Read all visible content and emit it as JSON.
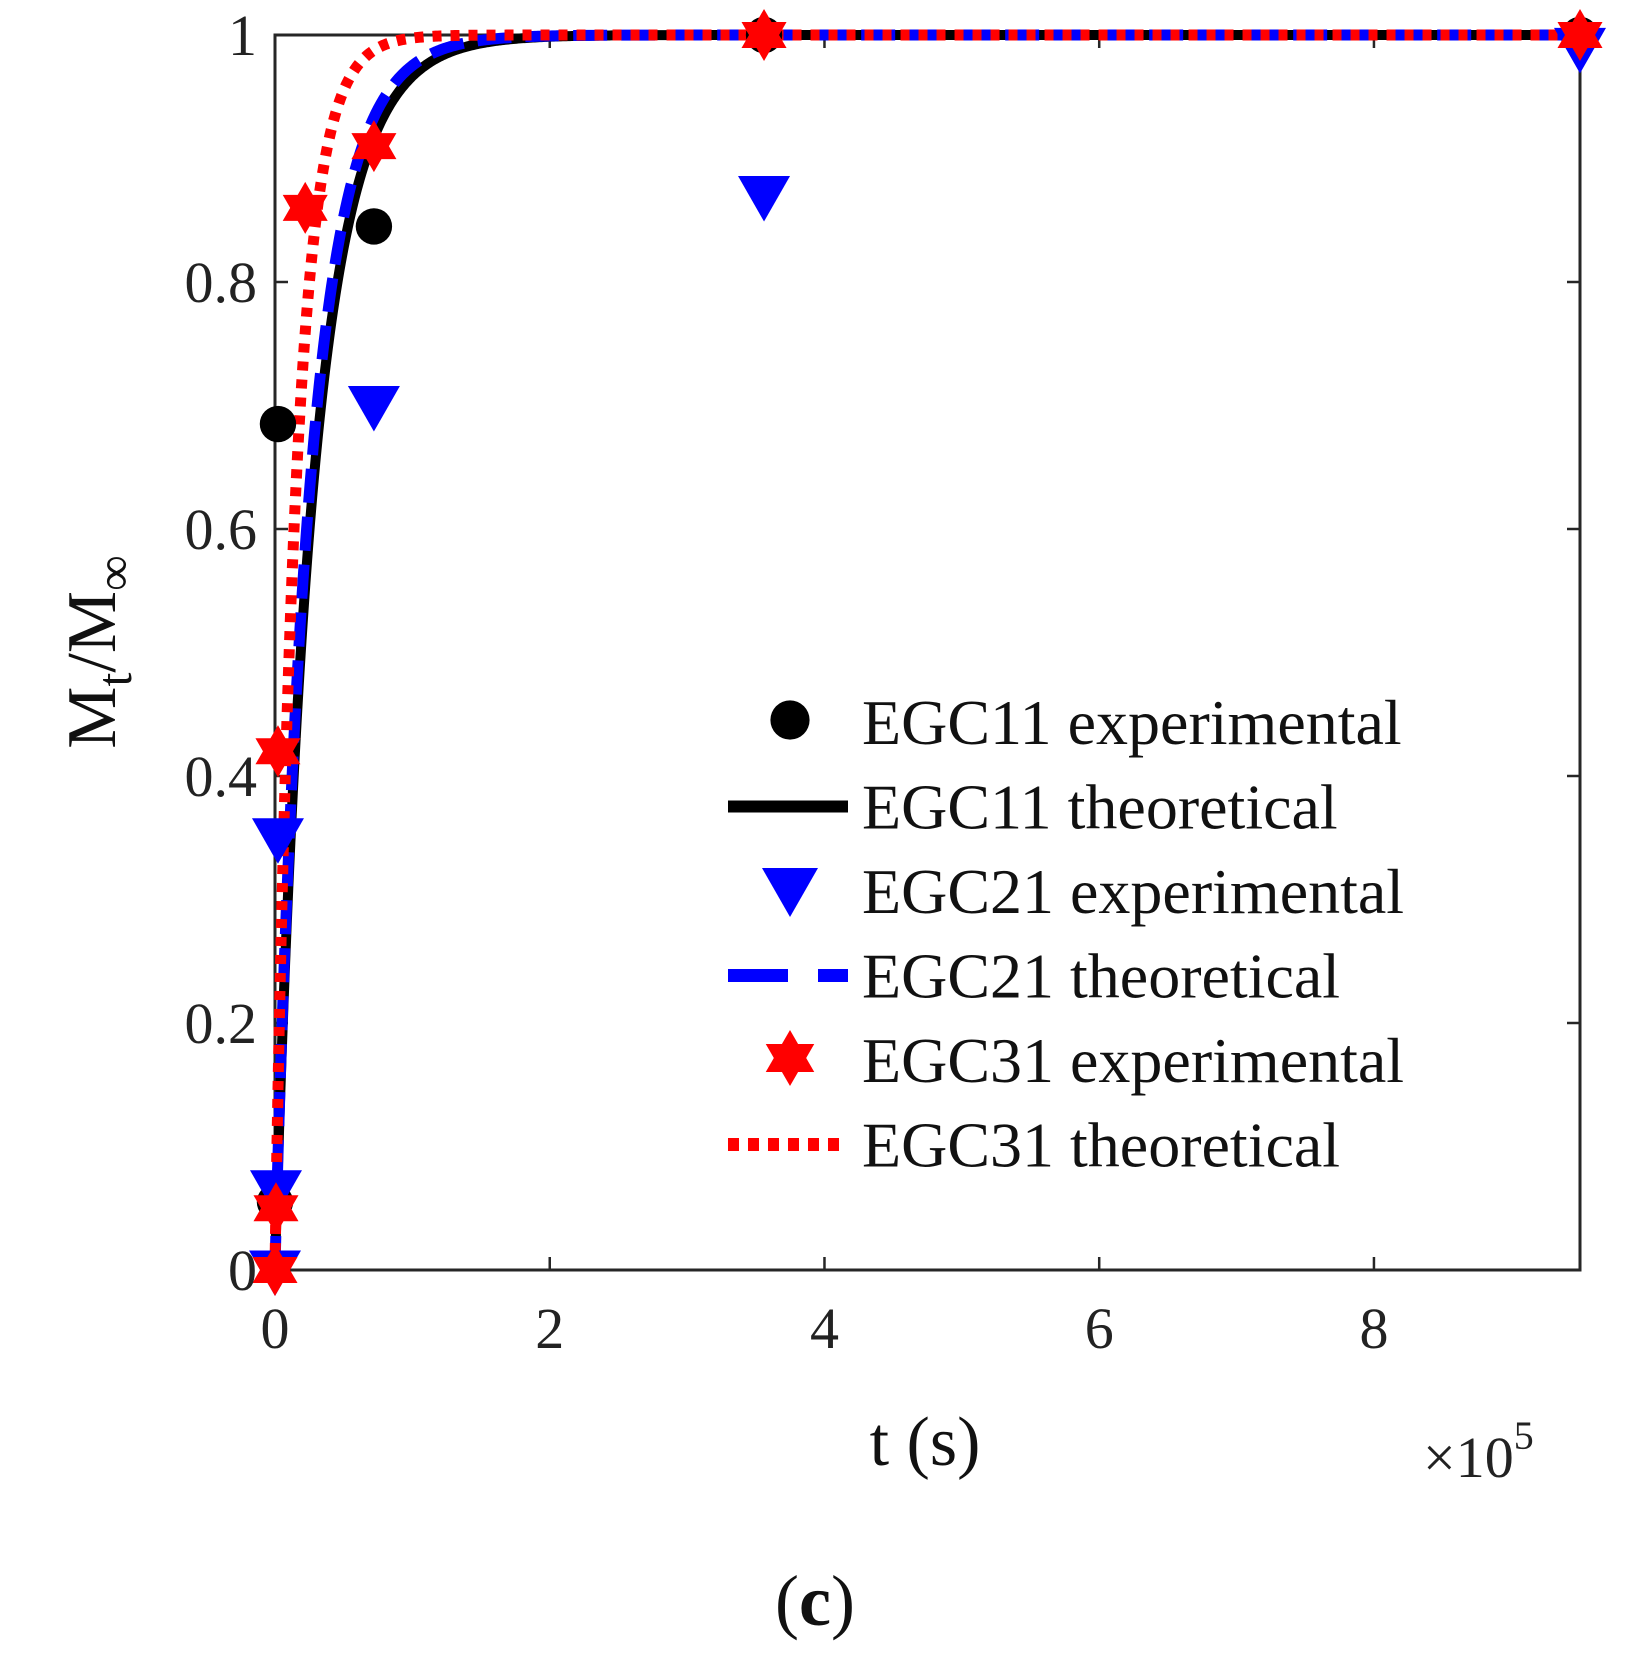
{
  "chart_data": {
    "type": "line",
    "title": "",
    "caption": {
      "open": "(",
      "letter": "c",
      "close": ")"
    },
    "xlabel": "t (s)",
    "ylabel": {
      "main": "M",
      "sub1": "t",
      "slash": "/M",
      "sub2": "∞"
    },
    "x_multiplier": {
      "times": "×10",
      "exp": "5"
    },
    "xlim": [
      0,
      9.5
    ],
    "ylim": [
      0,
      1
    ],
    "x_ticks": [
      0,
      2,
      4,
      6,
      8
    ],
    "x_tick_labels": [
      "0",
      "2",
      "4",
      "6",
      "8"
    ],
    "y_ticks": [
      0,
      0.2,
      0.4,
      0.6,
      0.8,
      1
    ],
    "y_tick_labels": [
      "0",
      "0.2",
      "0.4",
      "0.6",
      "0.8",
      "1"
    ],
    "grid": false,
    "legend_position": "bottom-right",
    "series": [
      {
        "name": "EGC11 experimental",
        "kind": "markers",
        "marker": "circle",
        "color": "#000000",
        "x": [
          0,
          0.0216,
          0.72,
          3.56,
          9.5
        ],
        "y": [
          0.055,
          0.685,
          0.845,
          1.0,
          1.0
        ]
      },
      {
        "name": "EGC11 theoretical",
        "kind": "line",
        "style": "solid",
        "color": "#000000",
        "k": 3.4,
        "n": 0.95
      },
      {
        "name": "EGC21 experimental",
        "kind": "markers",
        "marker": "triangle-down",
        "color": "#0000ff",
        "x": [
          0,
          0.0072,
          0.0216,
          0.72,
          3.56,
          9.5
        ],
        "y": [
          0.0,
          0.065,
          0.35,
          0.7,
          0.87,
          0.99
        ]
      },
      {
        "name": "EGC21 theoretical",
        "kind": "line",
        "style": "dashed",
        "color": "#0000ff",
        "k": 3.7,
        "n": 0.95
      },
      {
        "name": "EGC31 experimental",
        "kind": "markers",
        "marker": "hexagram",
        "color": "#ff0000",
        "x": [
          0,
          0.0072,
          0.0216,
          0.22,
          0.72,
          3.56,
          9.5
        ],
        "y": [
          0.0,
          0.05,
          0.42,
          0.86,
          0.91,
          1.0,
          1.0
        ]
      },
      {
        "name": "EGC31 theoretical",
        "kind": "line",
        "style": "dotted",
        "color": "#ff0000",
        "k": 6.0,
        "n": 0.95
      }
    ]
  }
}
